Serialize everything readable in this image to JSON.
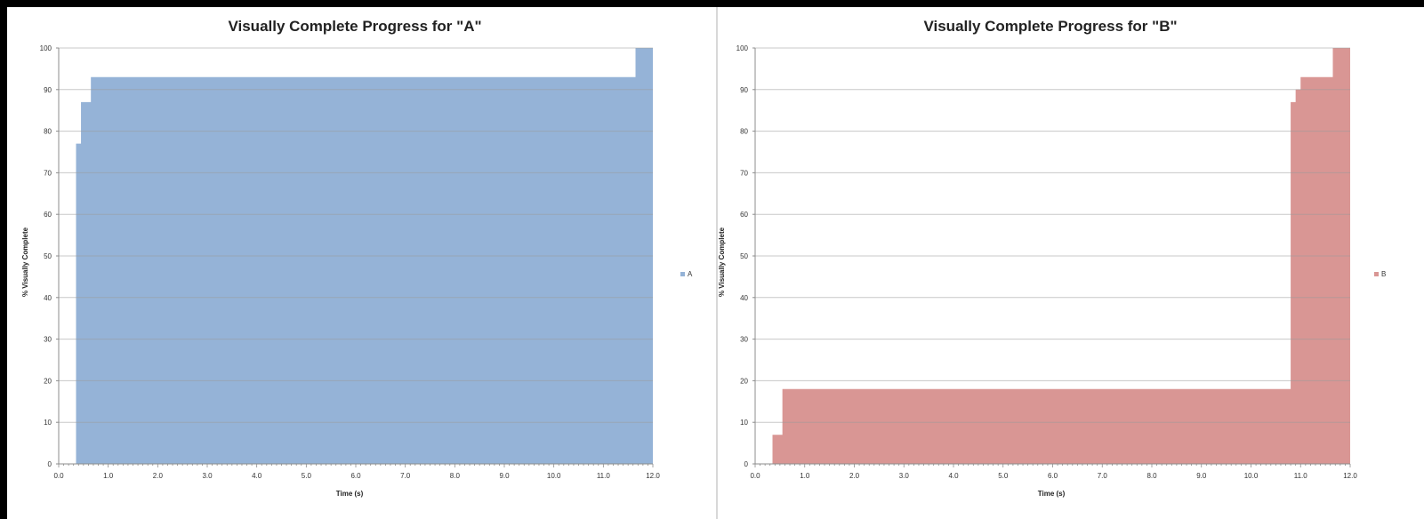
{
  "colors": {
    "series_a": "#95b3d7",
    "series_b": "#d99694",
    "grid": "#9a9a9a",
    "axis": "#8c8c8c",
    "background": "#ffffff"
  },
  "chart_data": [
    {
      "type": "area",
      "step": true,
      "title": "Visually Complete Progress for \"A\"",
      "xlabel": "Time (s)",
      "ylabel": "% Visually Complete",
      "xlim": [
        0,
        12
      ],
      "ylim": [
        0,
        100
      ],
      "xticks": [
        "0.0",
        "1.0",
        "2.0",
        "3.0",
        "4.0",
        "5.0",
        "6.0",
        "7.0",
        "8.0",
        "9.0",
        "10.0",
        "11.0",
        "12.0"
      ],
      "yticks": [
        "0",
        "10",
        "20",
        "30",
        "40",
        "50",
        "60",
        "70",
        "80",
        "90",
        "100"
      ],
      "grid": true,
      "legend_position": "right",
      "series": [
        {
          "name": "A",
          "color": "#95b3d7",
          "x": [
            0.35,
            0.45,
            0.65,
            11.65,
            12.0
          ],
          "y": [
            77,
            87,
            93,
            100,
            100
          ]
        }
      ]
    },
    {
      "type": "area",
      "step": true,
      "title": "Visually Complete Progress for \"B\"",
      "xlabel": "Time (s)",
      "ylabel": "% Visually Complete",
      "xlim": [
        0,
        12
      ],
      "ylim": [
        0,
        100
      ],
      "xticks": [
        "0.0",
        "1.0",
        "2.0",
        "3.0",
        "4.0",
        "5.0",
        "6.0",
        "7.0",
        "8.0",
        "9.0",
        "10.0",
        "11.0",
        "12.0"
      ],
      "yticks": [
        "0",
        "10",
        "20",
        "30",
        "40",
        "50",
        "60",
        "70",
        "80",
        "90",
        "100"
      ],
      "grid": true,
      "legend_position": "right",
      "series": [
        {
          "name": "B",
          "color": "#d99694",
          "x": [
            0.35,
            0.55,
            10.8,
            10.9,
            11.0,
            11.65,
            12.0
          ],
          "y": [
            7,
            18,
            87,
            90,
            93,
            100,
            100
          ]
        }
      ]
    }
  ]
}
